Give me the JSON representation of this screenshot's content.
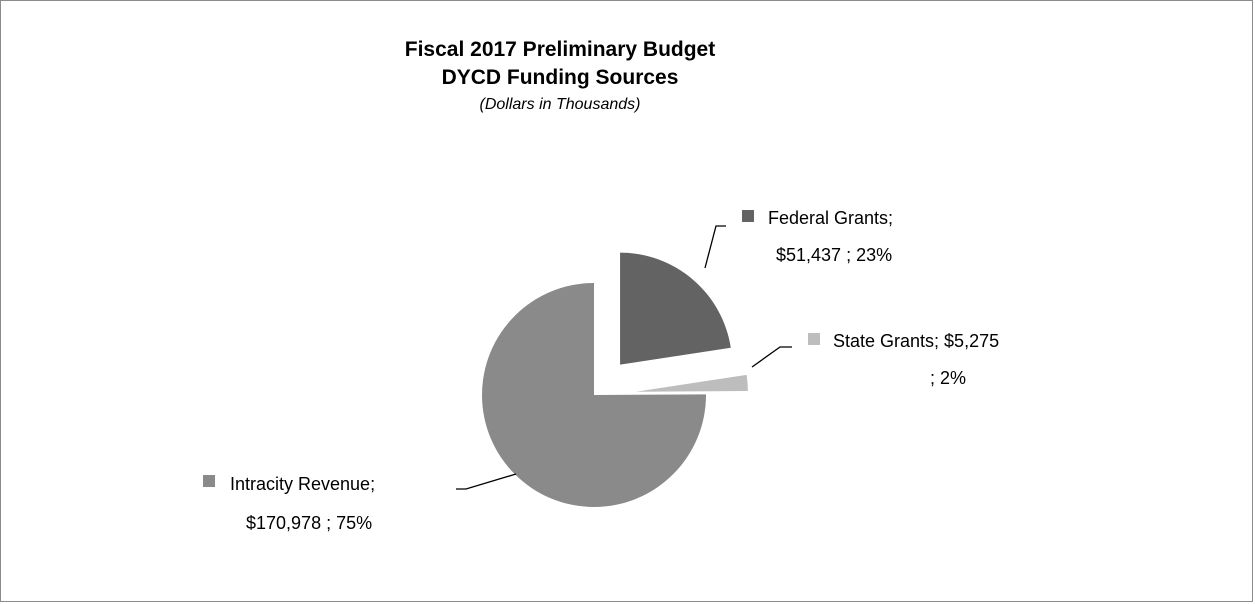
{
  "chart_data": {
    "type": "pie",
    "title": "Fiscal 2017 Preliminary Budget",
    "subtitle": "DYCD Funding Sources",
    "note": "(Dollars in Thousands)",
    "slices": [
      {
        "category": "Federal Grants",
        "value": 51437,
        "value_label": "$51,437",
        "percent": 23,
        "color": "#636363",
        "label_line1": "Federal Grants;",
        "label_line2": "$51,437 ; 23%"
      },
      {
        "category": "State Grants",
        "value": 5275,
        "value_label": "$5,275",
        "percent": 2,
        "color": "#bdbdbd",
        "label_line1": "State Grants;  $5,275",
        "label_line2": "; 2%"
      },
      {
        "category": "Intracity Revenue",
        "value": 170978,
        "value_label": "$170,978",
        "percent": 75,
        "color": "#8a8a8a",
        "label_line1": "Intracity Revenue;",
        "label_line2": "$170,978 ; 75%"
      }
    ],
    "exploded": true,
    "legend": "none"
  }
}
